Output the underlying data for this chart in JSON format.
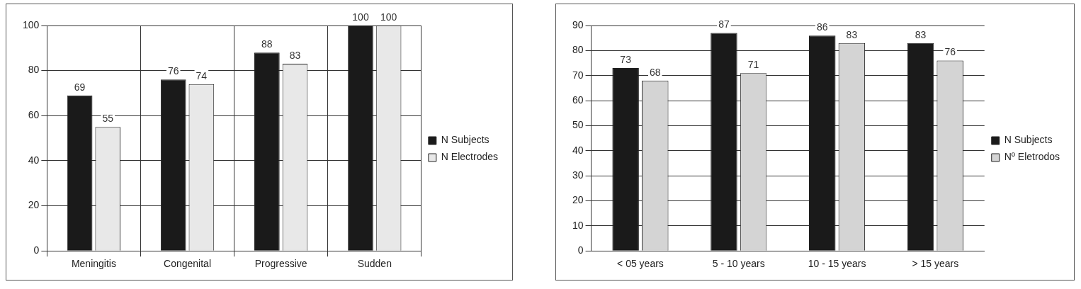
{
  "chart_data": [
    {
      "type": "bar",
      "categories": [
        "Meningitis",
        "Congenital",
        "Progressive",
        "Sudden"
      ],
      "series": [
        {
          "name": "N Subjects",
          "color": "#1a1a1a",
          "values": [
            69,
            76,
            88,
            100
          ]
        },
        {
          "name": "N Electrodes",
          "color": "#e8e8e8",
          "values": [
            55,
            74,
            83,
            100
          ]
        }
      ],
      "ylim": [
        0,
        100
      ],
      "yticks": [
        0,
        20,
        40,
        60,
        80,
        100
      ],
      "grid": true,
      "legend": "right",
      "data_labels": true
    },
    {
      "type": "bar",
      "categories": [
        "< 05 years",
        "5 - 10 years",
        "10 - 15 years",
        "> 15 years"
      ],
      "series": [
        {
          "name": "N Subjects",
          "color": "#1a1a1a",
          "values": [
            73,
            87,
            86,
            83
          ]
        },
        {
          "name": "Nº Eletrodos",
          "color": "#d4d4d4",
          "values": [
            68,
            71,
            83,
            76
          ]
        }
      ],
      "ylim": [
        0,
        90
      ],
      "yticks": [
        0,
        10,
        20,
        30,
        40,
        50,
        60,
        70,
        80,
        90
      ],
      "grid": "y",
      "legend": "right",
      "data_labels": true
    }
  ]
}
